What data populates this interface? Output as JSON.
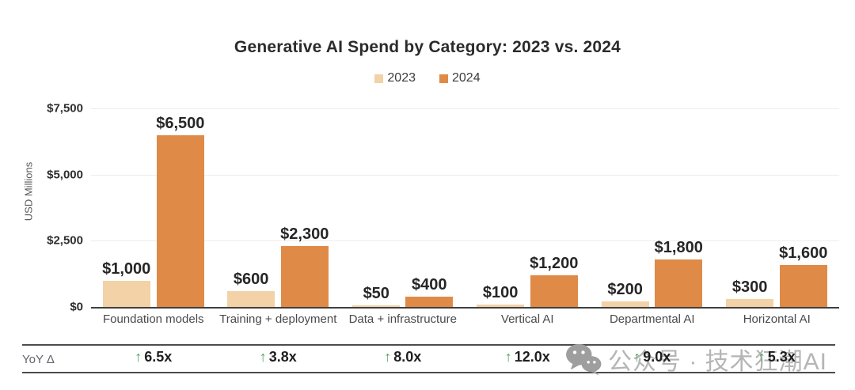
{
  "chart_data": {
    "type": "bar",
    "title": "Generative AI Spend by Category: 2023 vs. 2024",
    "ylabel": "USD Millions",
    "ylim": [
      0,
      7500
    ],
    "grid": "horizontal",
    "legend_position": "top-center",
    "yticks": [
      {
        "value": 0,
        "label": "$0"
      },
      {
        "value": 2500,
        "label": "$2,500"
      },
      {
        "value": 5000,
        "label": "$5,000"
      },
      {
        "value": 7500,
        "label": "$7,500"
      }
    ],
    "categories": [
      "Foundation models",
      "Training + deployment",
      "Data + infrastructure",
      "Vertical AI",
      "Departmental AI",
      "Horizontal AI"
    ],
    "series": [
      {
        "name": "2023",
        "color": "#f2d2a6",
        "values": [
          1000,
          600,
          50,
          100,
          200,
          300
        ],
        "labels": [
          "$1,000",
          "$600",
          "$50",
          "$100",
          "$200",
          "$300"
        ]
      },
      {
        "name": "2024",
        "color": "#e08a47",
        "values": [
          6500,
          2300,
          400,
          1200,
          1800,
          1600
        ],
        "labels": [
          "$6,500",
          "$2,300",
          "$400",
          "$1,200",
          "$1,800",
          "$1,600"
        ]
      }
    ]
  },
  "yoy": {
    "label": "YoY Δ",
    "arrow": "↑",
    "arrow_color": "#4ca05c",
    "values": [
      "6.5x",
      "3.8x",
      "8.0x",
      "12.0x",
      "9.0x",
      "5.3x"
    ]
  },
  "watermark": {
    "icon": "wechat-icon",
    "text": "公众号 · 技术狂潮AI",
    "color": "#b5b5b5"
  },
  "colors": {
    "axis": "#3f3f3f",
    "grid": "#ededed",
    "tick_text": "#2e2e2e",
    "category_text": "#4a4a4a",
    "title_text": "#2b2b2b"
  }
}
